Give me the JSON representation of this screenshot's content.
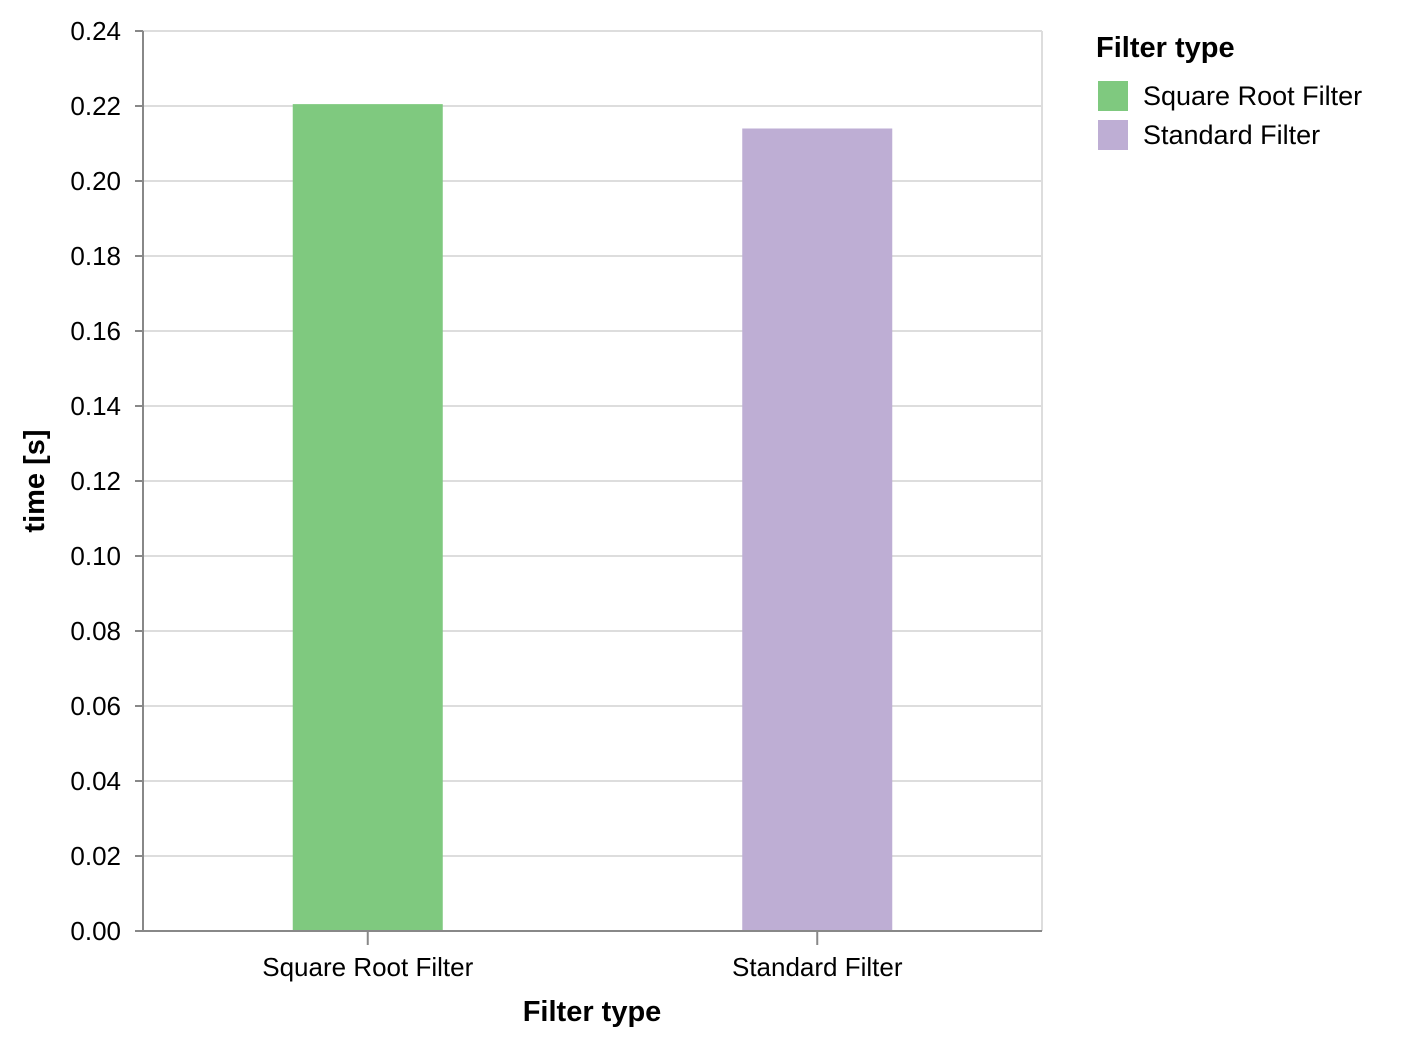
{
  "chart_data": {
    "type": "bar",
    "categories": [
      "Square Root Filter",
      "Standard Filter"
    ],
    "values": [
      0.2205,
      0.214
    ],
    "colors": [
      "#7fc97f",
      "#beaed4"
    ],
    "xlabel": "Filter type",
    "ylabel": "time [s]",
    "ylim": [
      0,
      0.24
    ],
    "yticks": [
      "0.00",
      "0.02",
      "0.04",
      "0.06",
      "0.08",
      "0.10",
      "0.12",
      "0.14",
      "0.16",
      "0.18",
      "0.20",
      "0.22",
      "0.24"
    ],
    "grid": true,
    "legend": {
      "title": "Filter type",
      "placement": "right",
      "entries": [
        "Square Root Filter",
        "Standard Filter"
      ]
    }
  }
}
